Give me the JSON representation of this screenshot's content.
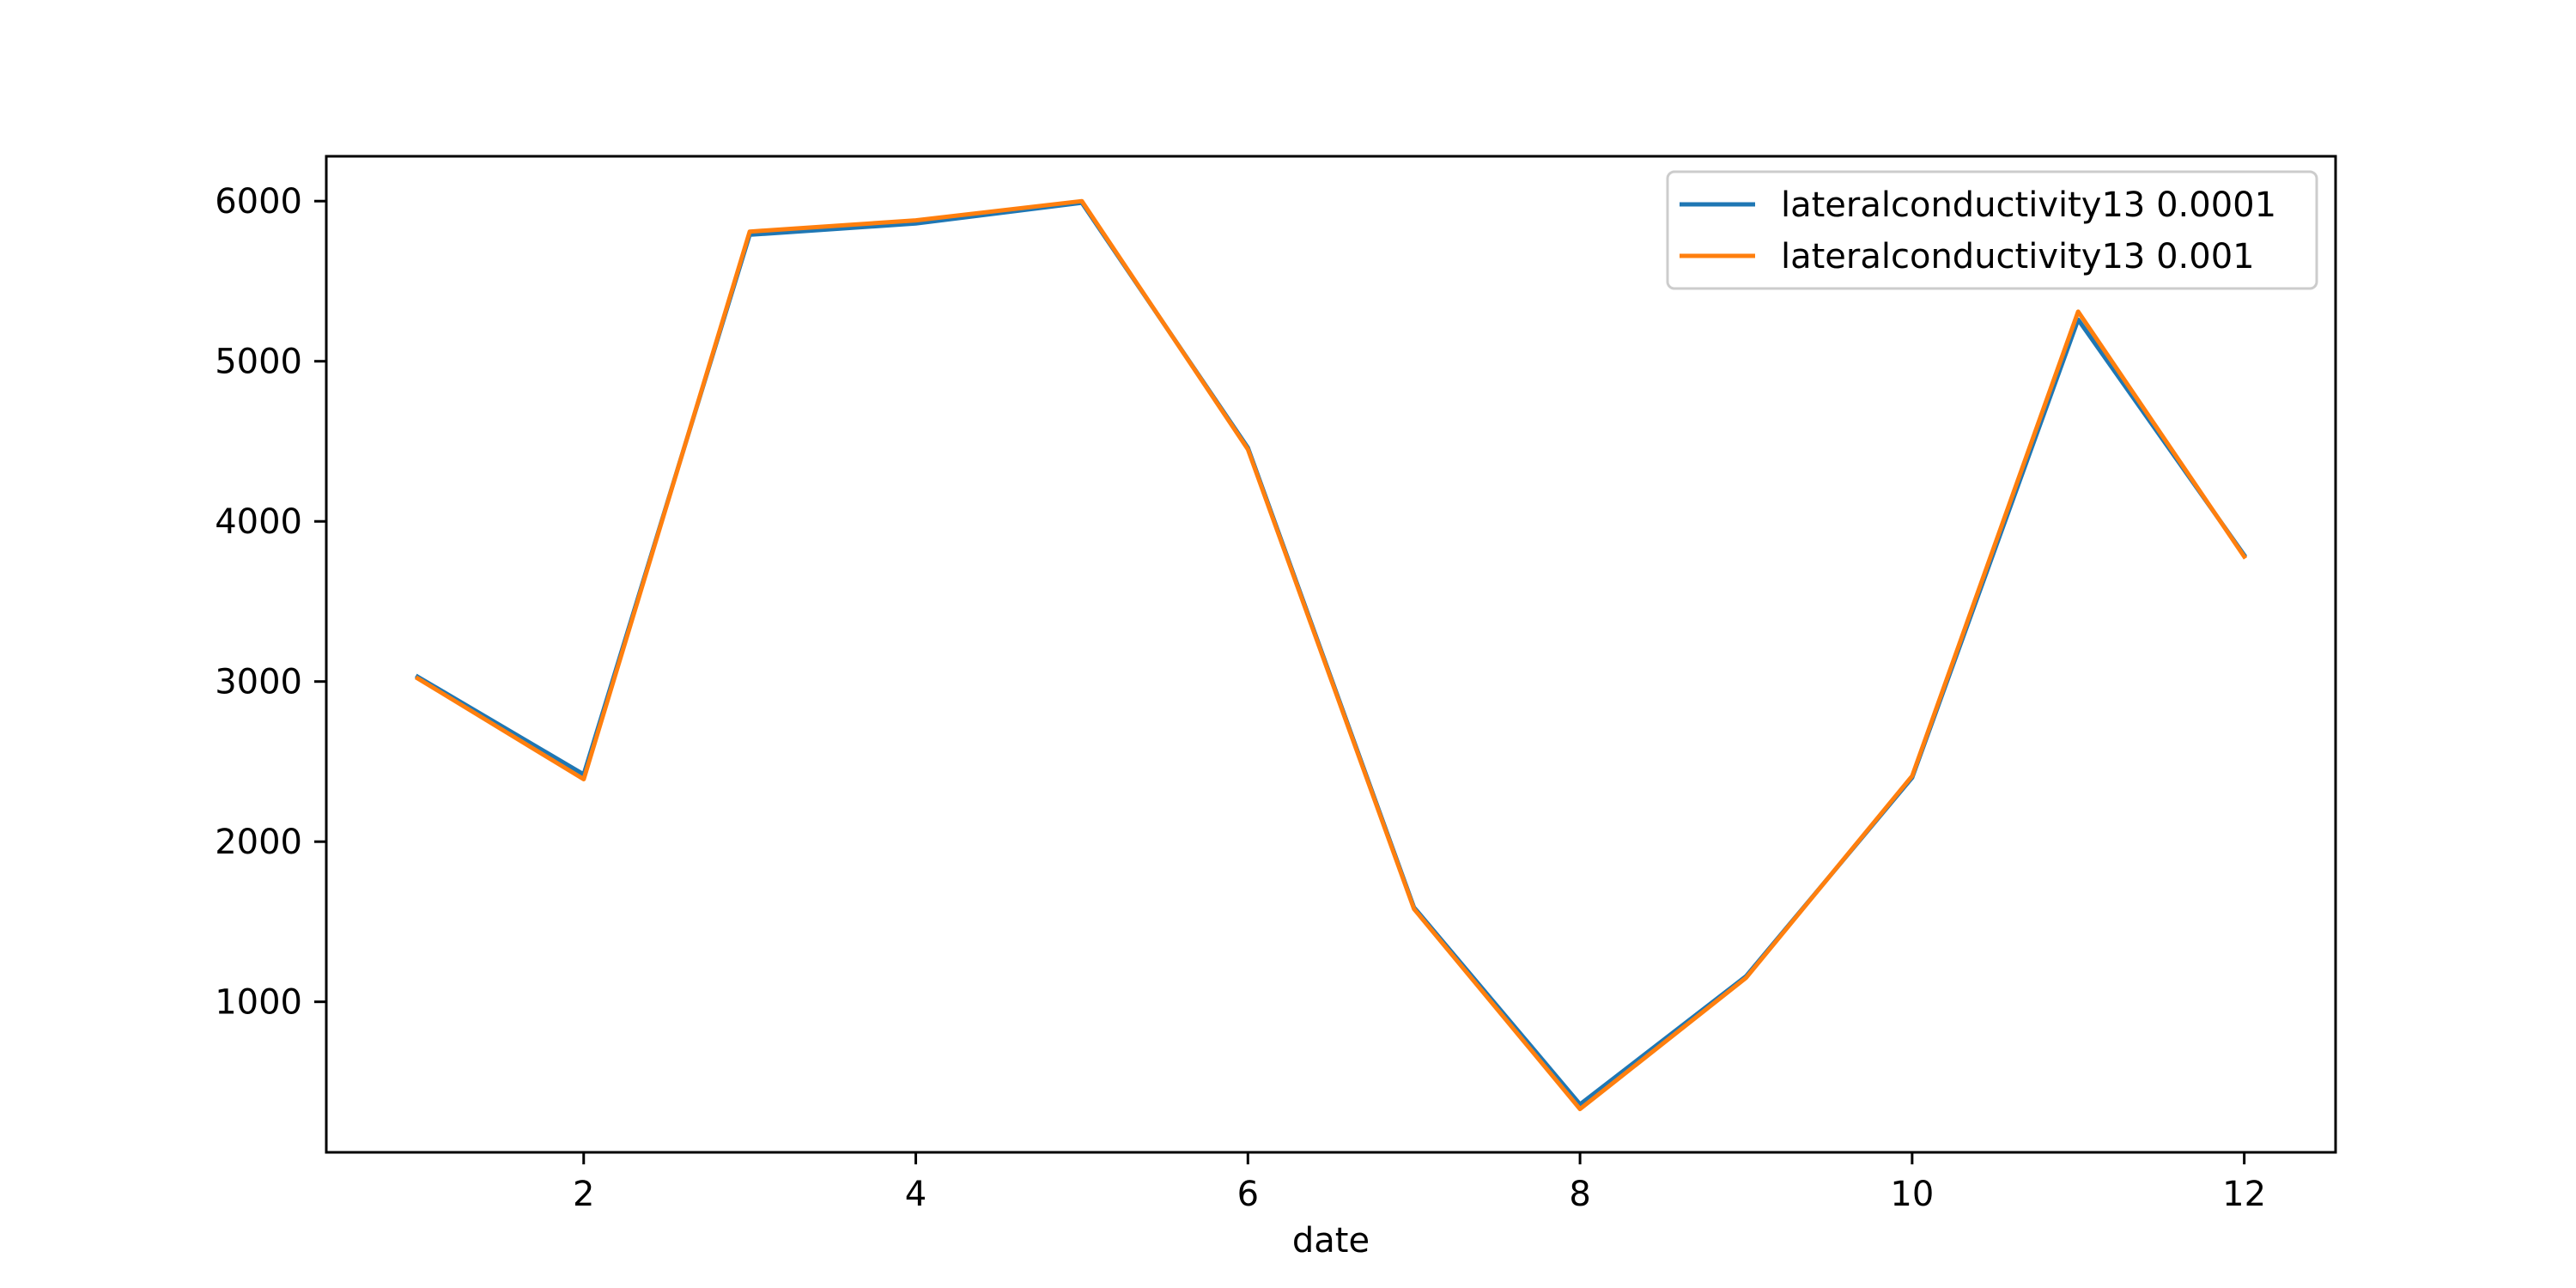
{
  "chart_data": {
    "type": "line",
    "title": "",
    "xlabel": "date",
    "ylabel": "",
    "xlim": [
      0.45,
      12.55
    ],
    "ylim": [
      60,
      6280
    ],
    "xticks": [
      2,
      4,
      6,
      8,
      10,
      12
    ],
    "yticks": [
      1000,
      2000,
      3000,
      4000,
      5000,
      6000
    ],
    "x": [
      1,
      2,
      3,
      4,
      5,
      6,
      7,
      8,
      9,
      10,
      11,
      12
    ],
    "series": [
      {
        "name": "lateralconductivity13 0.0001",
        "color": "#1f77b4",
        "values": [
          3030,
          2420,
          5790,
          5860,
          5990,
          4460,
          1590,
          360,
          1160,
          2400,
          5260,
          3790
        ]
      },
      {
        "name": "lateralconductivity13 0.001",
        "color": "#ff7f0e",
        "values": [
          3020,
          2390,
          5810,
          5880,
          6000,
          4450,
          1580,
          330,
          1150,
          2410,
          5310,
          3780
        ]
      }
    ],
    "legend_position": "upper right",
    "grid": false
  }
}
